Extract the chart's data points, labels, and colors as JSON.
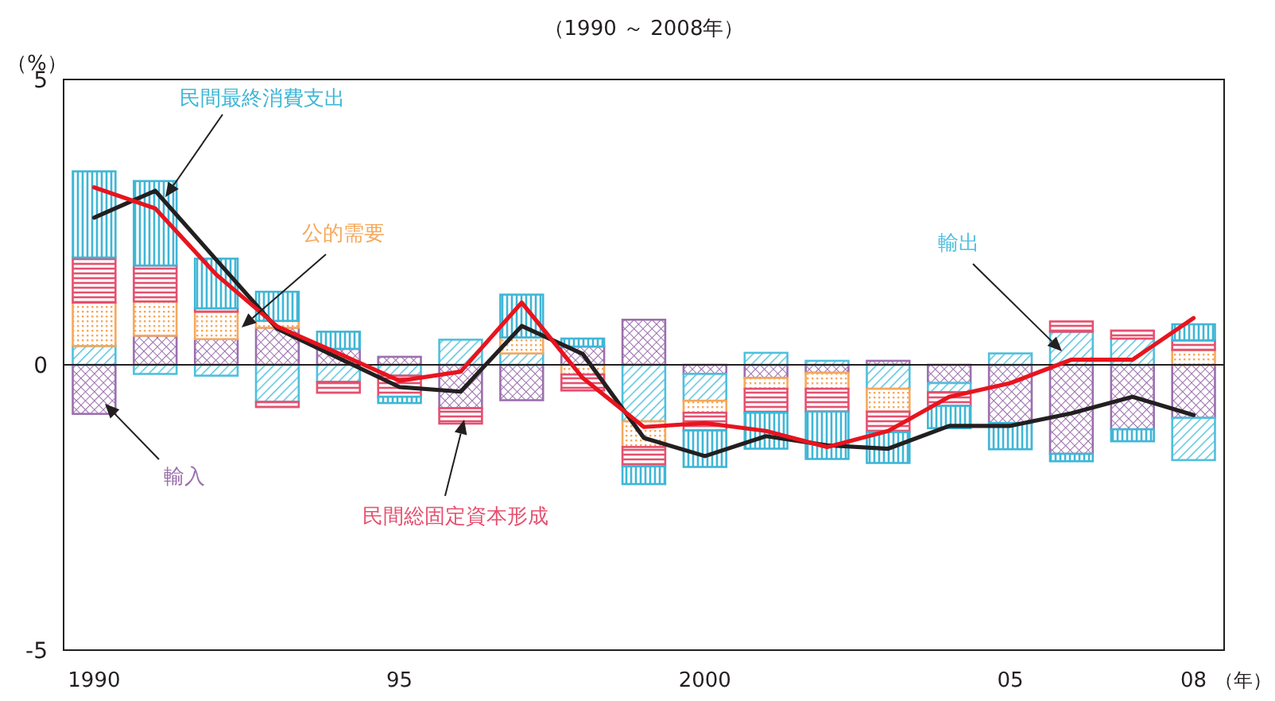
{
  "chart_data": {
    "type": "bar",
    "title": "（1990 ～ 2008年）",
    "ylabel": "（%）",
    "xlabel": "（年）",
    "stacked": true,
    "marker": "none",
    "ylim": [
      -5,
      5
    ],
    "yticks": [
      -5,
      0,
      5
    ],
    "categories": [
      "1990",
      null,
      null,
      null,
      null,
      "95",
      null,
      null,
      null,
      null,
      "2000",
      null,
      null,
      null,
      null,
      "05",
      null,
      null,
      "08"
    ],
    "ref_lines": [
      {
        "axis": "y",
        "value": 0,
        "color": "#231f20"
      }
    ],
    "series": [
      {
        "name": "輸入",
        "color": "#9b6fae",
        "values": [
          -0.86,
          0.51,
          0.45,
          0.65,
          0.28,
          0.14,
          -0.76,
          -0.62,
          0.32,
          0.79,
          -0.16,
          -0.23,
          -0.14,
          0.07,
          -0.32,
          -1.02,
          -1.56,
          -1.13,
          -0.93
        ]
      },
      {
        "name": "輸出",
        "color": "#4fc0dc",
        "values": [
          0.33,
          -0.16,
          -0.19,
          -0.65,
          -0.3,
          -0.19,
          0.44,
          0.2,
          null,
          -0.99,
          -0.47,
          0.21,
          0.07,
          -0.42,
          -0.16,
          0.2,
          0.58,
          0.46,
          -0.74
        ]
      },
      {
        "name": "公的需要",
        "color": "#f6a85c",
        "values": [
          0.76,
          0.6,
          0.48,
          0.12,
          null,
          null,
          null,
          0.28,
          -0.17,
          -0.45,
          -0.21,
          -0.19,
          -0.28,
          -0.4,
          null,
          null,
          null,
          null,
          0.26
        ]
      },
      {
        "name": "民間総固定資本形成",
        "color": "#e5506f",
        "values": [
          0.79,
          0.63,
          0.06,
          -0.09,
          -0.19,
          -0.37,
          -0.27,
          null,
          -0.28,
          -0.34,
          -0.31,
          -0.42,
          -0.4,
          -0.36,
          -0.24,
          null,
          0.18,
          0.14,
          0.17
        ]
      },
      {
        "name": "民間最終消費支出",
        "color": "#3fb6d6",
        "values": [
          1.51,
          1.48,
          0.87,
          0.51,
          0.3,
          -0.11,
          null,
          0.75,
          0.14,
          -0.31,
          -0.64,
          -0.63,
          -0.83,
          -0.54,
          -0.39,
          -0.46,
          -0.13,
          -0.21,
          0.28
        ]
      },
      {
        "type": "line",
        "color": "#231f20",
        "line_style": "solid",
        "values": [
          2.58,
          3.05,
          1.84,
          0.63,
          0.12,
          -0.39,
          -0.47,
          0.68,
          0.19,
          -1.28,
          -1.6,
          -1.25,
          -1.41,
          -1.47,
          -1.07,
          -1.07,
          -0.85,
          -0.56,
          -0.88
        ]
      },
      {
        "type": "line",
        "color": "#e8141e",
        "line_style": "solid",
        "values": [
          3.11,
          2.74,
          1.58,
          0.67,
          0.2,
          -0.28,
          -0.12,
          1.09,
          -0.23,
          -1.09,
          -1.02,
          -1.16,
          -1.44,
          -1.16,
          -0.56,
          -0.32,
          0.09,
          0.09,
          0.82
        ]
      }
    ]
  }
}
